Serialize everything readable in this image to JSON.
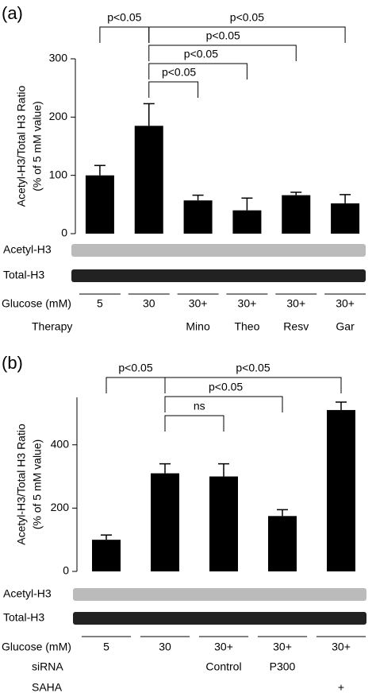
{
  "chart_data": [
    {
      "type": "bar",
      "panel_label": "(a)",
      "y_label": [
        "Acetyl-H3/Total H3 Ratio",
        "(% of 5 mM value)"
      ],
      "categories": [
        "5",
        "30",
        "30+",
        "30+",
        "30+",
        "30+"
      ],
      "values": [
        100,
        185,
        57,
        40,
        66,
        52
      ],
      "errors": [
        17,
        38,
        9,
        21,
        5,
        15
      ],
      "color": "#000000",
      "ylim": [
        0,
        300
      ],
      "yticks": [
        0,
        100,
        200,
        300
      ],
      "category_label": "Glucose (mM)",
      "rows": [
        {
          "label": "Therapy",
          "values": [
            null,
            null,
            "Mino",
            "Theo",
            "Resv",
            "Gar"
          ]
        }
      ],
      "blots": [
        "Acetyl-H3",
        "Total-H3"
      ],
      "comparisons": [
        {
          "from": 0,
          "to": 1,
          "label": "p<0.05"
        },
        {
          "from": 1,
          "to": 5,
          "label": "p<0.05"
        },
        {
          "from": 1,
          "to": 4,
          "label": "p<0.05"
        },
        {
          "from": 1,
          "to": 3,
          "label": "p<0.05"
        },
        {
          "from": 1,
          "to": 2,
          "label": "p<0.05"
        }
      ]
    },
    {
      "type": "bar",
      "panel_label": "(b)",
      "y_label": [
        "Acetyl-H3/Total H3 Ratio",
        "(% of 5 mM value)"
      ],
      "categories": [
        "5",
        "30",
        "30+",
        "30+",
        "30+"
      ],
      "values": [
        100,
        310,
        300,
        175,
        510
      ],
      "errors": [
        15,
        30,
        40,
        20,
        25
      ],
      "color": "#000000",
      "ylim": [
        0,
        550
      ],
      "yticks": [
        0,
        200,
        400
      ],
      "category_label": "Glucose (mM)",
      "rows": [
        {
          "label": "siRNA",
          "values": [
            null,
            null,
            "Control",
            "P300",
            null
          ]
        },
        {
          "label": "SAHA",
          "values": [
            null,
            null,
            null,
            null,
            "+"
          ]
        }
      ],
      "blots": [
        "Acetyl-H3",
        "Total-H3"
      ],
      "comparisons": [
        {
          "from": 0,
          "to": 1,
          "label": "p<0.05"
        },
        {
          "from": 1,
          "to": 4,
          "label": "p<0.05"
        },
        {
          "from": 1,
          "to": 3,
          "label": "p<0.05"
        },
        {
          "from": 1,
          "to": 2,
          "label": "ns"
        }
      ]
    }
  ]
}
